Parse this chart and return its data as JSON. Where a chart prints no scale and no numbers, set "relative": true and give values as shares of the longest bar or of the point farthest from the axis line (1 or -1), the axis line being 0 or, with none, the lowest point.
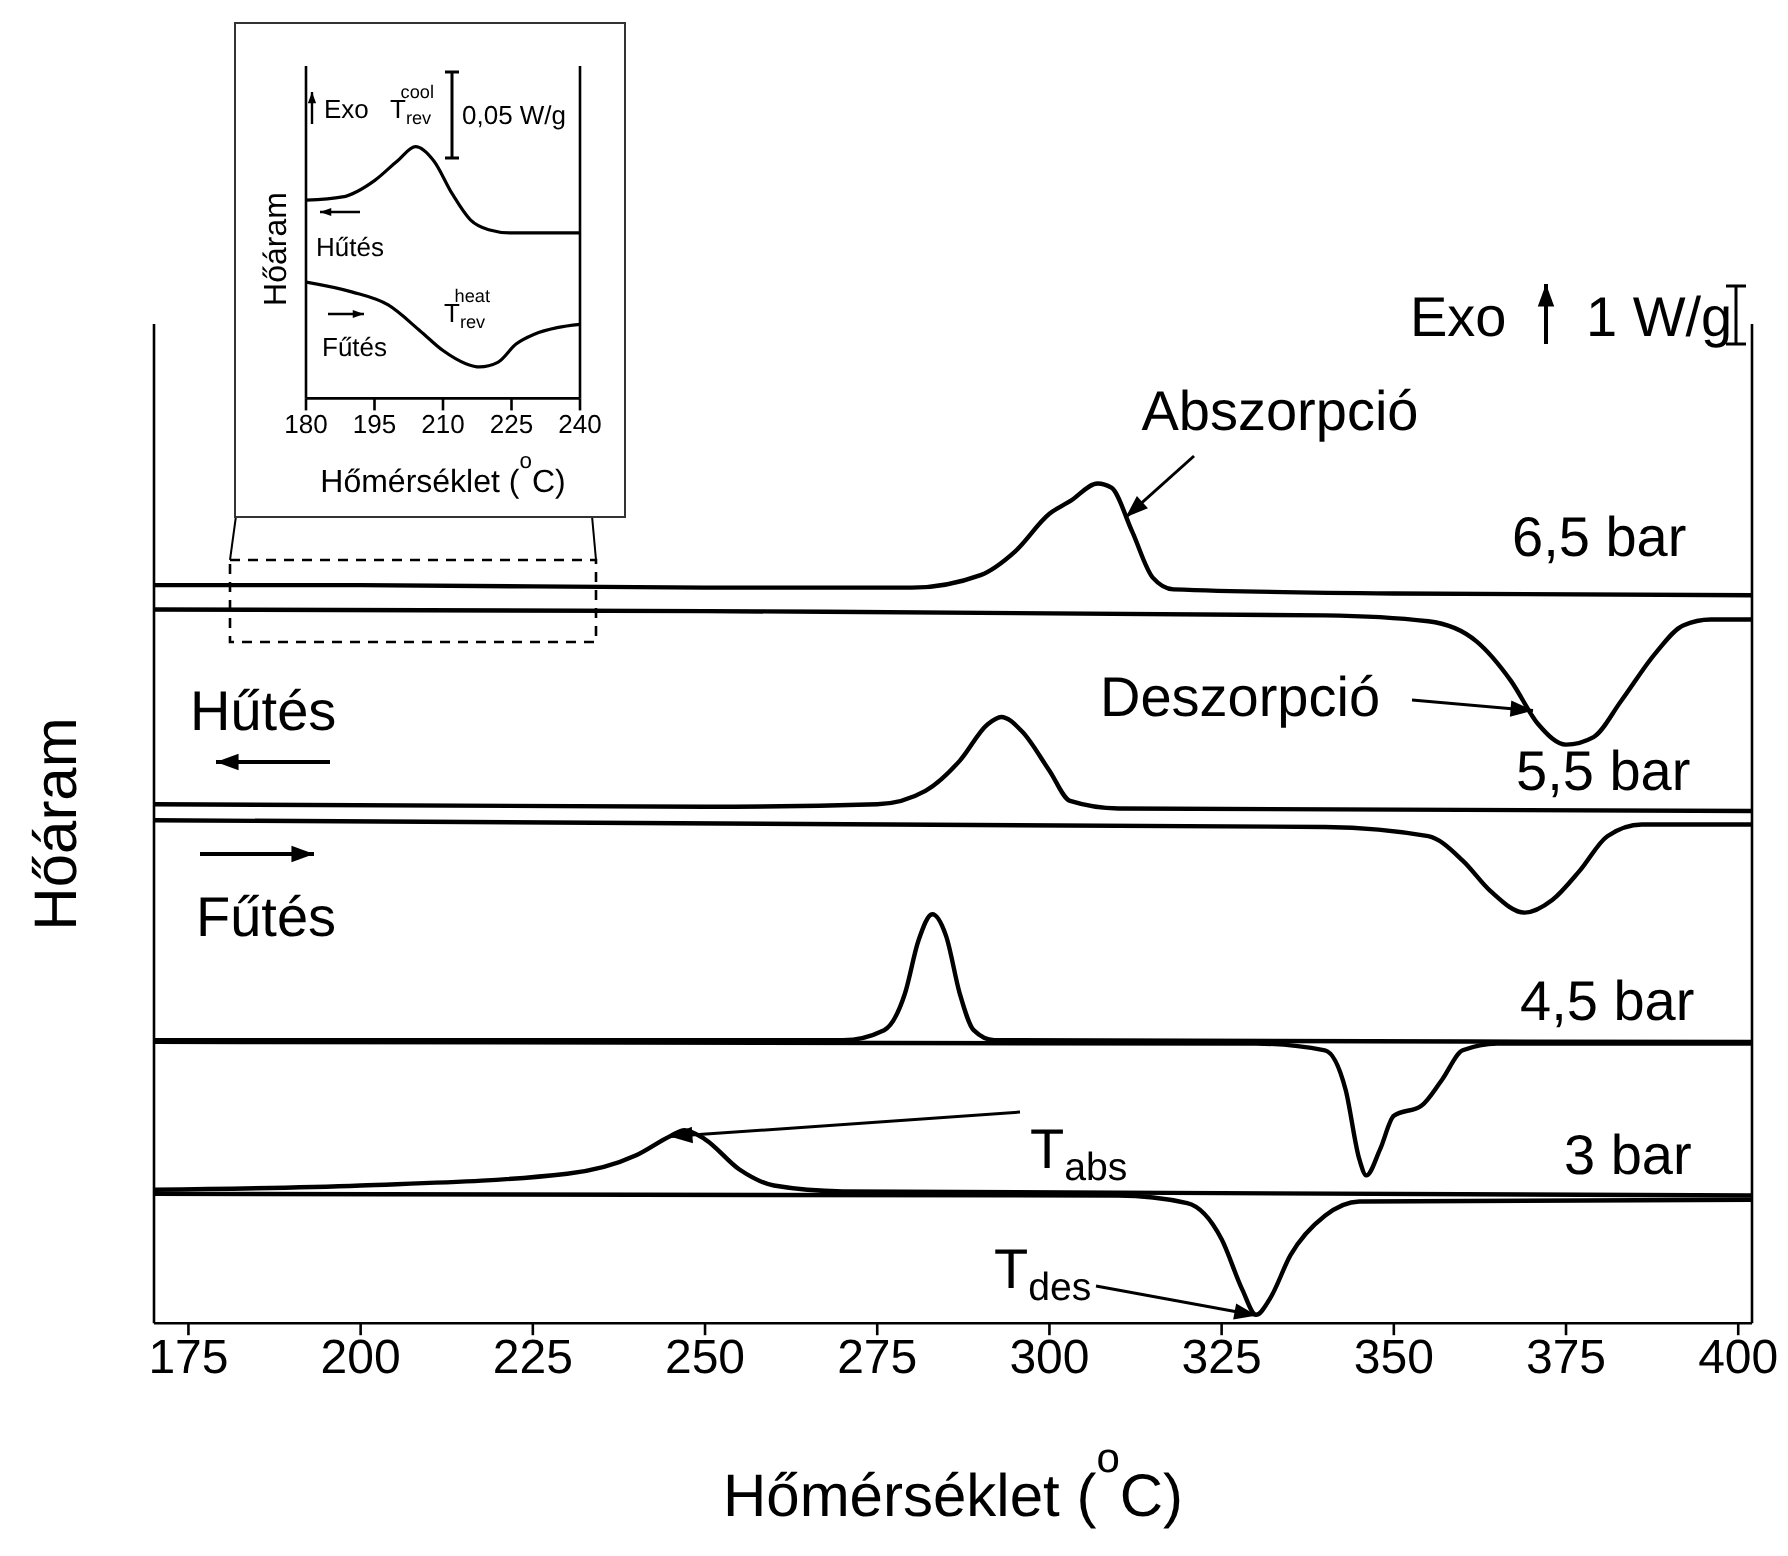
{
  "chart_data": [
    {
      "type": "line",
      "xlabel": "Hőmérséklet ($^{o}$C)",
      "ylabel": "Hőáram",
      "xlim": [
        170,
        402
      ],
      "xticks": [
        175,
        200,
        225,
        250,
        275,
        300,
        325,
        350,
        375,
        400
      ],
      "relative": true,
      "series": [
        {
          "color": "#000000",
          "x": [
            170,
            200,
            250,
            280,
            290,
            295,
            300,
            303,
            307,
            309,
            312,
            315,
            318,
            350,
            402
          ],
          "values": [
            0.879,
            0.879,
            0.876,
            0.876,
            0.891,
            0.919,
            0.964,
            0.979,
            1.0,
            0.995,
            0.943,
            0.888,
            0.874,
            0.869,
            0.867
          ]
        },
        {
          "color": "#000000",
          "x": [
            170,
            250,
            340,
            355,
            362,
            367,
            371,
            375,
            379,
            383,
            388,
            392,
            396,
            402
          ],
          "values": [
            0.85,
            0.848,
            0.843,
            0.836,
            0.812,
            0.765,
            0.713,
            0.689,
            0.698,
            0.741,
            0.798,
            0.831,
            0.838,
            0.838
          ]
        },
        {
          "color": "#000000",
          "x": [
            170,
            250,
            275,
            282,
            287,
            291,
            293,
            296,
            300,
            303,
            310,
            402
          ],
          "values": [
            0.618,
            0.615,
            0.618,
            0.634,
            0.67,
            0.713,
            0.722,
            0.705,
            0.658,
            0.622,
            0.613,
            0.61
          ]
        },
        {
          "color": "#000000",
          "x": [
            170,
            340,
            355,
            360,
            364,
            369,
            373,
            377,
            381,
            386,
            402
          ],
          "values": [
            0.599,
            0.591,
            0.58,
            0.551,
            0.515,
            0.489,
            0.504,
            0.539,
            0.58,
            0.594,
            0.594
          ]
        },
        {
          "color": "#000000",
          "x": [
            170,
            270,
            276,
            279,
            281,
            283,
            285,
            287,
            289,
            292,
            402
          ],
          "values": [
            0.337,
            0.337,
            0.349,
            0.392,
            0.456,
            0.487,
            0.461,
            0.392,
            0.349,
            0.337,
            0.335
          ]
        },
        {
          "color": "#000000",
          "x": [
            170,
            330,
            340,
            343,
            345,
            346,
            348,
            350,
            354,
            357,
            360,
            365,
            402
          ],
          "values": [
            0.335,
            0.333,
            0.325,
            0.278,
            0.195,
            0.176,
            0.207,
            0.247,
            0.259,
            0.29,
            0.325,
            0.333,
            0.333
          ]
        },
        {
          "color": "#000000",
          "x": [
            170,
            200,
            230,
            240,
            245,
            247,
            250,
            255,
            260,
            270,
            402
          ],
          "values": [
            0.159,
            0.164,
            0.178,
            0.2,
            0.223,
            0.23,
            0.219,
            0.183,
            0.164,
            0.157,
            0.152
          ]
        },
        {
          "color": "#000000",
          "x": [
            170,
            310,
            320,
            325,
            328,
            330,
            332,
            335,
            340,
            345,
            402
          ],
          "values": [
            0.154,
            0.152,
            0.143,
            0.1,
            0.04,
            0.01,
            0.029,
            0.081,
            0.128,
            0.145,
            0.147
          ]
        }
      ],
      "annotations": [
        {
          "text": "Abszorpció",
          "x": 311,
          "y": 0.96
        },
        {
          "text": "Deszorpció",
          "x": 370,
          "y": 0.73
        },
        {
          "text": "T$_{abs}$",
          "x": 245,
          "y": 0.223
        },
        {
          "text": "T$_{des}$",
          "x": 330,
          "y": 0.01
        },
        "6,5 bar",
        "5,5 bar",
        "4,5 bar",
        "3 bar",
        "Hűtés",
        "Fűtés",
        "Exo",
        "1 W/g"
      ]
    },
    {
      "type": "line",
      "xlabel": "Hőmérséklet ($^{o}$C)",
      "ylabel": "Hőáram",
      "xlim": [
        180,
        240
      ],
      "xticks": [
        180,
        195,
        210,
        225,
        240
      ],
      "relative": true,
      "series": [
        {
          "color": "#000000",
          "x": [
            180,
            188,
            195,
            200,
            204,
            208,
            212,
            216,
            220,
            225,
            240
          ],
          "values": [
            0.787,
            0.8,
            0.865,
            0.943,
            1.0,
            0.943,
            0.813,
            0.709,
            0.67,
            0.657,
            0.657
          ]
        },
        {
          "color": "#000000",
          "x": [
            180,
            190,
            198,
            205,
            210,
            215,
            218,
            222,
            226,
            230,
            235,
            240
          ],
          "values": [
            0.462,
            0.423,
            0.371,
            0.268,
            0.19,
            0.138,
            0.125,
            0.143,
            0.216,
            0.255,
            0.281,
            0.294
          ]
        }
      ],
      "annotations": [
        "Exo",
        "T$_{rev}$$^{cool}$",
        "0,05 W/g",
        "Hűtés",
        "Fűtés",
        "T$_{rev}$$^{heat}$"
      ]
    }
  ]
}
